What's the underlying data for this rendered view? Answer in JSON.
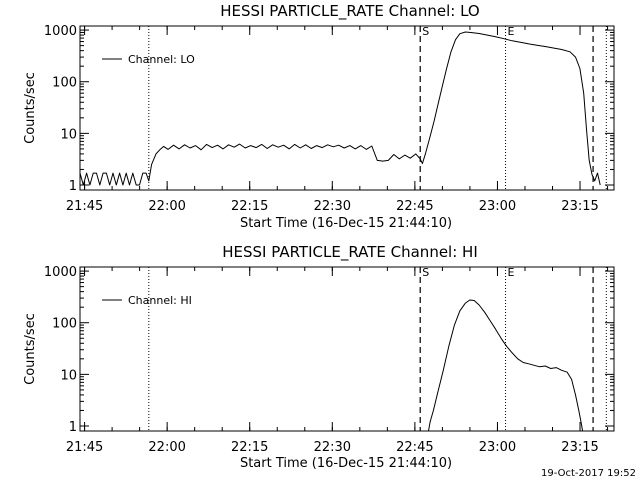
{
  "footer": {
    "timestamp": "19-Oct-2017 19:52"
  },
  "chart_data": [
    {
      "type": "line",
      "title": "HESSI PARTICLE_RATE Channel: LO",
      "xlabel": "Start Time (16-Dec-15 21:44:10)",
      "ylabel": "Counts/sec",
      "yscale": "log",
      "x_unit": "minutes after 21:44:10",
      "xlim": [
        0,
        97
      ],
      "ylim": [
        0.8,
        1200
      ],
      "x_ticks": [
        {
          "x": 0.83,
          "label": "21:45"
        },
        {
          "x": 15.83,
          "label": "22:00"
        },
        {
          "x": 30.83,
          "label": "22:15"
        },
        {
          "x": 45.83,
          "label": "22:30"
        },
        {
          "x": 60.83,
          "label": "22:45"
        },
        {
          "x": 75.83,
          "label": "23:00"
        },
        {
          "x": 90.83,
          "label": "23:15"
        }
      ],
      "y_ticks": [
        {
          "y": 1,
          "label": "1"
        },
        {
          "y": 10,
          "label": "10"
        },
        {
          "y": 100,
          "label": "100"
        },
        {
          "y": 1000,
          "label": "1000"
        }
      ],
      "legend": {
        "position": "top-left",
        "entries": [
          "Channel: LO"
        ]
      },
      "vlines": [
        {
          "x": 12.5,
          "style": "dotted",
          "label": ""
        },
        {
          "x": 61.8,
          "style": "dashed",
          "label": "S"
        },
        {
          "x": 77.3,
          "style": "dotted",
          "label": "E"
        },
        {
          "x": 93.2,
          "style": "dashed",
          "label": ""
        },
        {
          "x": 95.6,
          "style": "dotted",
          "label": ""
        }
      ],
      "series": [
        {
          "name": "Channel: LO",
          "points": [
            [
              0,
              1.7
            ],
            [
              0.6,
              1.0
            ],
            [
              1.2,
              1.7
            ],
            [
              1.8,
              1.0
            ],
            [
              2.4,
              1.7
            ],
            [
              3.0,
              1.7
            ],
            [
              3.6,
              1.0
            ],
            [
              4.2,
              1.7
            ],
            [
              4.8,
              1.7
            ],
            [
              5.4,
              1.0
            ],
            [
              6.0,
              1.7
            ],
            [
              6.6,
              1.0
            ],
            [
              7.2,
              1.7
            ],
            [
              7.8,
              1.0
            ],
            [
              8.4,
              1.7
            ],
            [
              9.0,
              1.0
            ],
            [
              9.6,
              1.7
            ],
            [
              10.2,
              1.0
            ],
            [
              10.8,
              1.0
            ],
            [
              11.4,
              1.7
            ],
            [
              12.0,
              1.7
            ],
            [
              12.5,
              1.2
            ],
            [
              13.0,
              2.5
            ],
            [
              13.8,
              4.0
            ],
            [
              14.5,
              4.8
            ],
            [
              15.2,
              5.6
            ],
            [
              16.0,
              4.9
            ],
            [
              17.0,
              5.9
            ],
            [
              18.0,
              5.0
            ],
            [
              19.0,
              6.0
            ],
            [
              20.0,
              5.2
            ],
            [
              21.0,
              5.8
            ],
            [
              22.0,
              4.8
            ],
            [
              23.0,
              6.1
            ],
            [
              24.0,
              5.3
            ],
            [
              25.0,
              5.9
            ],
            [
              26.0,
              5.0
            ],
            [
              27.0,
              6.0
            ],
            [
              28.0,
              5.4
            ],
            [
              29.0,
              6.2
            ],
            [
              30.0,
              5.2
            ],
            [
              31.0,
              5.8
            ],
            [
              32.0,
              5.3
            ],
            [
              33.0,
              6.1
            ],
            [
              34.0,
              5.1
            ],
            [
              35.0,
              6.0
            ],
            [
              36.0,
              5.4
            ],
            [
              37.0,
              5.9
            ],
            [
              38.0,
              5.0
            ],
            [
              39.0,
              6.1
            ],
            [
              40.0,
              5.2
            ],
            [
              41.0,
              6.0
            ],
            [
              42.0,
              5.1
            ],
            [
              43.0,
              5.8
            ],
            [
              44.0,
              5.3
            ],
            [
              45.0,
              6.0
            ],
            [
              46.0,
              5.5
            ],
            [
              47.0,
              5.9
            ],
            [
              48.0,
              5.2
            ],
            [
              49.0,
              5.8
            ],
            [
              50.0,
              5.0
            ],
            [
              51.0,
              5.8
            ],
            [
              52.0,
              4.9
            ],
            [
              53.0,
              5.7
            ],
            [
              54.0,
              3.0
            ],
            [
              55.0,
              2.9
            ],
            [
              56.0,
              3.0
            ],
            [
              57.0,
              3.9
            ],
            [
              58.0,
              3.2
            ],
            [
              59.0,
              3.8
            ],
            [
              60.0,
              3.3
            ],
            [
              61.0,
              4.0
            ],
            [
              61.8,
              3.2
            ],
            [
              62.2,
              2.6
            ],
            [
              62.8,
              4.2
            ],
            [
              63.5,
              8.0
            ],
            [
              64.3,
              17.0
            ],
            [
              65.0,
              35.0
            ],
            [
              65.8,
              80.0
            ],
            [
              66.6,
              180.0
            ],
            [
              67.4,
              380.0
            ],
            [
              68.2,
              650.0
            ],
            [
              69.0,
              850.0
            ],
            [
              70.0,
              920.0
            ],
            [
              71.0,
              900.0
            ],
            [
              72.5,
              860.0
            ],
            [
              74.0,
              800.0
            ],
            [
              75.5,
              740.0
            ],
            [
              77.0,
              680.0
            ],
            [
              78.5,
              620.0
            ],
            [
              80.0,
              580.0
            ],
            [
              81.5,
              540.0
            ],
            [
              83.0,
              510.0
            ],
            [
              84.5,
              480.0
            ],
            [
              86.0,
              450.0
            ],
            [
              87.5,
              420.0
            ],
            [
              89.0,
              380.0
            ],
            [
              90.0,
              300.0
            ],
            [
              90.8,
              180.0
            ],
            [
              91.5,
              60.0
            ],
            [
              92.0,
              12.0
            ],
            [
              92.5,
              3.0
            ],
            [
              93.0,
              1.6
            ],
            [
              93.5,
              1.2
            ],
            [
              94.0,
              1.7
            ],
            [
              94.5,
              1.0
            ]
          ]
        }
      ]
    },
    {
      "type": "line",
      "title": "HESSI PARTICLE_RATE Channel: HI",
      "xlabel": "Start Time (16-Dec-15 21:44:10)",
      "ylabel": "Counts/sec",
      "yscale": "log",
      "x_unit": "minutes after 21:44:10",
      "xlim": [
        0,
        97
      ],
      "ylim": [
        0.8,
        1200
      ],
      "x_ticks": [
        {
          "x": 0.83,
          "label": "21:45"
        },
        {
          "x": 15.83,
          "label": "22:00"
        },
        {
          "x": 30.83,
          "label": "22:15"
        },
        {
          "x": 45.83,
          "label": "22:30"
        },
        {
          "x": 60.83,
          "label": "22:45"
        },
        {
          "x": 75.83,
          "label": "23:00"
        },
        {
          "x": 90.83,
          "label": "23:15"
        }
      ],
      "y_ticks": [
        {
          "y": 1,
          "label": "1"
        },
        {
          "y": 10,
          "label": "10"
        },
        {
          "y": 100,
          "label": "100"
        },
        {
          "y": 1000,
          "label": "1000"
        }
      ],
      "legend": {
        "position": "top-left",
        "entries": [
          "Channel: HI"
        ]
      },
      "vlines": [
        {
          "x": 12.5,
          "style": "dotted",
          "label": ""
        },
        {
          "x": 61.8,
          "style": "dashed",
          "label": "S"
        },
        {
          "x": 77.3,
          "style": "dotted",
          "label": "E"
        },
        {
          "x": 93.2,
          "style": "dashed",
          "label": ""
        },
        {
          "x": 95.6,
          "style": "dotted",
          "label": ""
        }
      ],
      "series": [
        {
          "name": "Channel: HI",
          "points": [
            [
              63.3,
              0.8
            ],
            [
              63.6,
              1.2
            ],
            [
              64.2,
              2.0
            ],
            [
              65.0,
              4.5
            ],
            [
              66.0,
              12.0
            ],
            [
              67.0,
              35.0
            ],
            [
              68.0,
              90.0
            ],
            [
              69.0,
              170.0
            ],
            [
              70.0,
              240.0
            ],
            [
              70.8,
              275.0
            ],
            [
              71.6,
              270.0
            ],
            [
              72.5,
              220.0
            ],
            [
              73.5,
              160.0
            ],
            [
              74.5,
              110.0
            ],
            [
              75.5,
              75.0
            ],
            [
              76.5,
              50.0
            ],
            [
              77.5,
              35.0
            ],
            [
              78.5,
              26.0
            ],
            [
              79.5,
              20.0
            ],
            [
              80.5,
              17.0
            ],
            [
              81.5,
              16.0
            ],
            [
              82.5,
              15.0
            ],
            [
              83.5,
              14.0
            ],
            [
              84.5,
              14.5
            ],
            [
              85.5,
              13.0
            ],
            [
              86.5,
              13.5
            ],
            [
              87.5,
              12.0
            ],
            [
              88.5,
              11.0
            ],
            [
              89.3,
              8.0
            ],
            [
              90.0,
              4.0
            ],
            [
              90.6,
              2.0
            ],
            [
              91.0,
              1.2
            ],
            [
              91.3,
              0.8
            ]
          ]
        }
      ]
    }
  ]
}
